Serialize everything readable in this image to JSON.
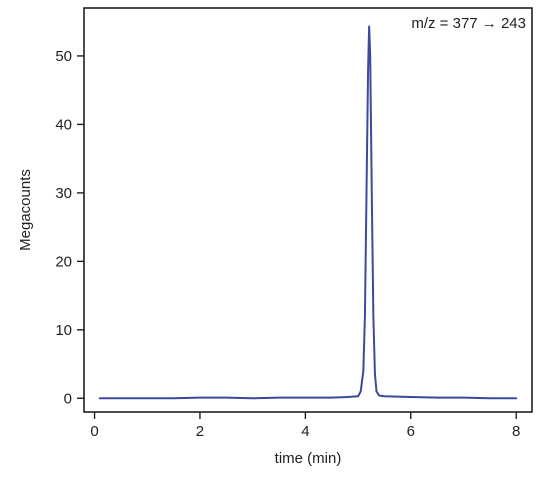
{
  "chart_data": {
    "type": "line",
    "title": "",
    "xlabel": "time (min)",
    "ylabel": "Megacounts",
    "xlim": [
      -0.2,
      8.3
    ],
    "ylim": [
      -2,
      57
    ],
    "xticks": [
      0,
      2,
      4,
      6,
      8
    ],
    "yticks": [
      0,
      10,
      20,
      30,
      40,
      50
    ],
    "xtick_labels": [
      "0",
      "2",
      "4",
      "6",
      "8"
    ],
    "ytick_labels": [
      "0",
      "10",
      "20",
      "30",
      "40",
      "50"
    ],
    "grid": false,
    "annotation": {
      "text": "m/z = 377 → 243",
      "placement": "top-right"
    },
    "series": [
      {
        "color": "#3d4a9b",
        "x": [
          0.1,
          0.5,
          1.0,
          1.5,
          2.0,
          2.5,
          3.0,
          3.5,
          4.0,
          4.5,
          4.8,
          5.0,
          5.05,
          5.1,
          5.13,
          5.16,
          5.19,
          5.21,
          5.23,
          5.26,
          5.29,
          5.32,
          5.35,
          5.4,
          5.5,
          6.0,
          6.5,
          7.0,
          7.5,
          8.0
        ],
        "y": [
          0.0,
          0.0,
          0.0,
          0.0,
          0.1,
          0.1,
          0.0,
          0.1,
          0.1,
          0.1,
          0.2,
          0.3,
          1.0,
          4.0,
          12.0,
          30.0,
          48.0,
          54.3,
          50.0,
          30.0,
          12.0,
          3.5,
          1.0,
          0.4,
          0.3,
          0.2,
          0.1,
          0.1,
          0.0,
          0.0
        ]
      }
    ]
  }
}
